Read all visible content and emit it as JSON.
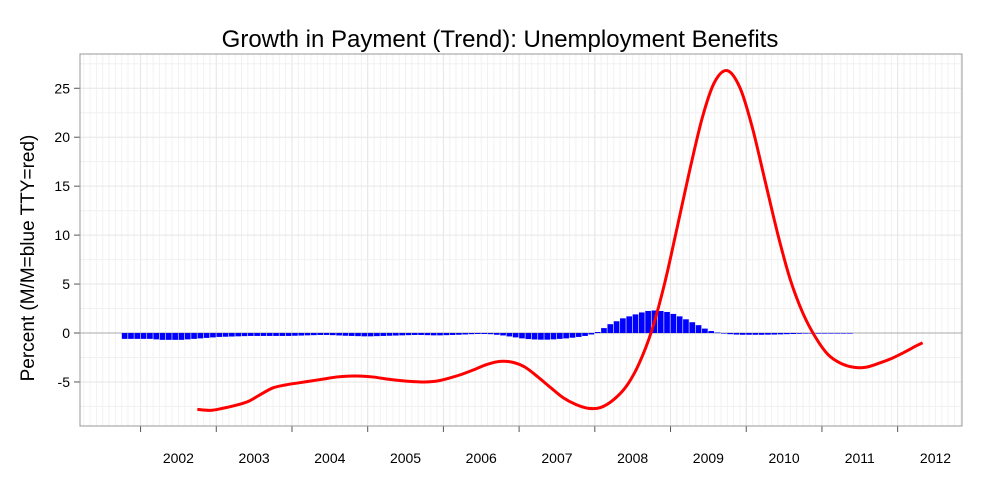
{
  "chart_data": {
    "type": "bar+line",
    "title": "Growth in Payment (Trend): Unemployment Benefits",
    "ylabel": "Percent (M/M=blue TTY=red)",
    "xlabel": "",
    "xlim": [
      2001.2,
      2012.85
    ],
    "ylim": [
      -9.5,
      28.5
    ],
    "yticks": [
      -5,
      0,
      5,
      10,
      15,
      20,
      25
    ],
    "xticks": [
      2002,
      2003,
      2004,
      2005,
      2006,
      2007,
      2008,
      2009,
      2010,
      2011,
      2012
    ],
    "grid": true,
    "colors": {
      "mm": "#0000ff",
      "tty": "#ff0000",
      "zero_line": "#aaaaaa",
      "grid": "#e6e6e6"
    },
    "series": [
      {
        "kind": "bar",
        "color": "#0000ff",
        "start": 2001.79,
        "step": 0.0833,
        "values": [
          -0.6,
          -0.6,
          -0.6,
          -0.6,
          -0.6,
          -0.65,
          -0.7,
          -0.7,
          -0.7,
          -0.7,
          -0.65,
          -0.6,
          -0.55,
          -0.5,
          -0.45,
          -0.4,
          -0.38,
          -0.36,
          -0.34,
          -0.32,
          -0.3,
          -0.3,
          -0.3,
          -0.3,
          -0.3,
          -0.3,
          -0.3,
          -0.28,
          -0.26,
          -0.24,
          -0.22,
          -0.2,
          -0.2,
          -0.22,
          -0.25,
          -0.28,
          -0.3,
          -0.32,
          -0.34,
          -0.34,
          -0.32,
          -0.3,
          -0.28,
          -0.26,
          -0.24,
          -0.22,
          -0.2,
          -0.2,
          -0.22,
          -0.24,
          -0.24,
          -0.22,
          -0.2,
          -0.18,
          -0.15,
          -0.12,
          -0.1,
          -0.1,
          -0.12,
          -0.18,
          -0.25,
          -0.35,
          -0.45,
          -0.55,
          -0.62,
          -0.66,
          -0.68,
          -0.68,
          -0.65,
          -0.6,
          -0.55,
          -0.48,
          -0.4,
          -0.3,
          -0.15,
          0.1,
          0.5,
          0.9,
          1.2,
          1.5,
          1.7,
          1.9,
          2.1,
          2.25,
          2.3,
          2.25,
          2.15,
          1.95,
          1.7,
          1.4,
          1.1,
          0.8,
          0.45,
          0.2,
          0.05,
          -0.05,
          -0.12,
          -0.16,
          -0.18,
          -0.18,
          -0.18,
          -0.18,
          -0.17,
          -0.16,
          -0.14,
          -0.12,
          -0.1,
          -0.08,
          -0.06,
          -0.04,
          -0.03,
          -0.02,
          -0.01,
          -0.01,
          0.0,
          0.0
        ]
      },
      {
        "kind": "line",
        "color": "#ff0000",
        "x": [
          2002.75,
          2002.92,
          2003.08,
          2003.25,
          2003.42,
          2003.58,
          2003.75,
          2003.92,
          2004.08,
          2004.25,
          2004.42,
          2004.58,
          2004.75,
          2004.92,
          2005.08,
          2005.25,
          2005.42,
          2005.58,
          2005.75,
          2005.92,
          2006.08,
          2006.25,
          2006.42,
          2006.58,
          2006.75,
          2006.92,
          2007.08,
          2007.25,
          2007.42,
          2007.58,
          2007.75,
          2007.92,
          2008.08,
          2008.25,
          2008.42,
          2008.58,
          2008.75,
          2008.92,
          2009.08,
          2009.25,
          2009.42,
          2009.58,
          2009.75,
          2009.92,
          2010.08,
          2010.25,
          2010.42,
          2010.58,
          2010.75,
          2010.92,
          2011.08,
          2011.25,
          2011.42,
          2011.58,
          2011.75,
          2011.92,
          2012.08,
          2012.25,
          2012.33
        ],
        "values": [
          -7.8,
          -7.9,
          -7.7,
          -7.4,
          -7.0,
          -6.3,
          -5.6,
          -5.3,
          -5.1,
          -4.9,
          -4.7,
          -4.5,
          -4.4,
          -4.4,
          -4.5,
          -4.7,
          -4.85,
          -4.95,
          -5.0,
          -4.9,
          -4.6,
          -4.2,
          -3.7,
          -3.2,
          -2.9,
          -3.0,
          -3.5,
          -4.5,
          -5.6,
          -6.6,
          -7.3,
          -7.7,
          -7.6,
          -6.8,
          -5.4,
          -3.2,
          0.2,
          5.0,
          10.5,
          16.5,
          22.0,
          25.6,
          26.8,
          25.0,
          21.0,
          15.5,
          10.0,
          5.5,
          2.0,
          -0.5,
          -2.2,
          -3.1,
          -3.5,
          -3.5,
          -3.1,
          -2.6,
          -2.0,
          -1.3,
          -1.0
        ]
      }
    ]
  }
}
